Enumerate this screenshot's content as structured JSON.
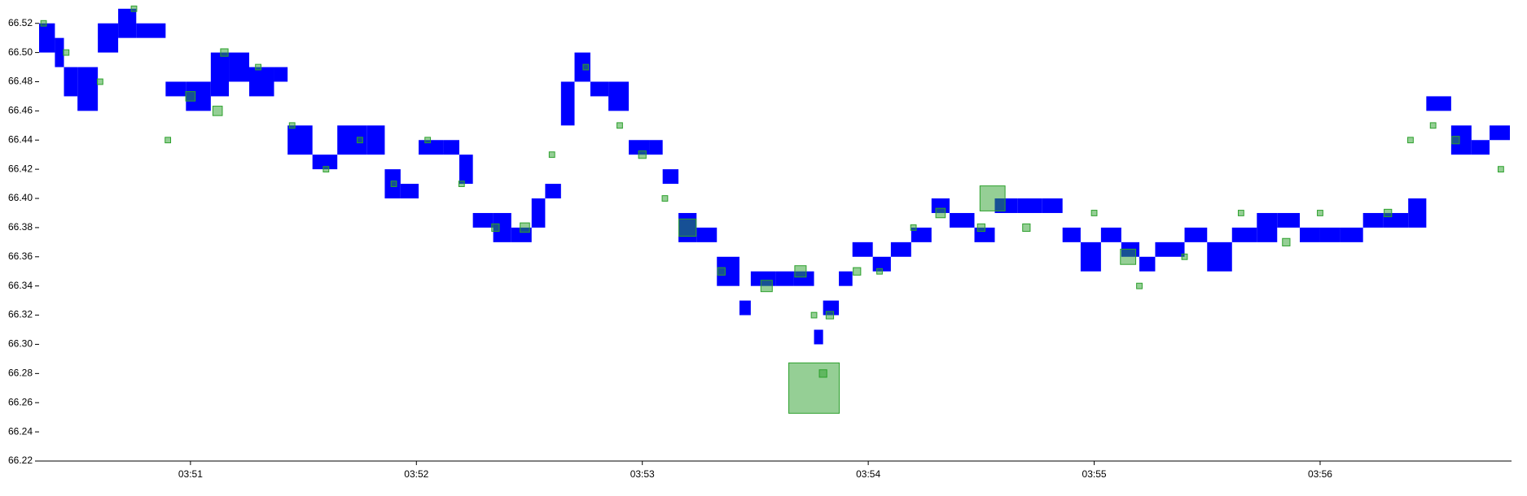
{
  "chart_data": {
    "type": "scatter",
    "xlim": [
      50.33,
      56.84
    ],
    "xticks": [
      {
        "value": 51,
        "label": "03:51"
      },
      {
        "value": 52,
        "label": "03:52"
      },
      {
        "value": 53,
        "label": "03:53"
      },
      {
        "value": 54,
        "label": "03:54"
      },
      {
        "value": 55,
        "label": "03:55"
      },
      {
        "value": 56,
        "label": "03:56"
      }
    ],
    "ylim": [
      66.22,
      66.536
    ],
    "yticks": [
      66.22,
      66.24,
      66.26,
      66.28,
      {
        "value": 66.3,
        "label": "66.30"
      },
      66.32,
      66.34,
      66.36,
      66.38,
      {
        "value": 66.4,
        "label": "66.40"
      },
      66.42,
      66.44,
      66.46,
      66.48,
      {
        "value": 66.5,
        "label": "66.50"
      },
      66.52
    ],
    "band": {
      "color": "#0000ff",
      "x": [
        50.33,
        50.4,
        50.44,
        50.5,
        50.59,
        50.68,
        50.76,
        50.89,
        50.98,
        51.09,
        51.17,
        51.26,
        51.37,
        51.43,
        51.54,
        51.65,
        51.78,
        51.86,
        51.93,
        52.01,
        52.12,
        52.19,
        52.25,
        52.34,
        52.42,
        52.51,
        52.57,
        52.64,
        52.7,
        52.77,
        52.85,
        52.94,
        53.03,
        53.09,
        53.16,
        53.24,
        53.33,
        53.43,
        53.48,
        53.59,
        53.67,
        53.76,
        53.8,
        53.87,
        53.93,
        54.02,
        54.1,
        54.19,
        54.28,
        54.36,
        54.47,
        54.56,
        54.66,
        54.77,
        54.86,
        54.94,
        55.03,
        55.12,
        55.2,
        55.27,
        55.4,
        55.5,
        55.61,
        55.72,
        55.81,
        55.91,
        56.0,
        56.09,
        56.19,
        56.28,
        56.39,
        56.47,
        56.58,
        56.67,
        56.75
      ],
      "low": [
        66.5,
        66.49,
        66.47,
        66.46,
        66.5,
        66.51,
        66.51,
        66.47,
        66.46,
        66.47,
        66.48,
        66.47,
        66.48,
        66.43,
        66.42,
        66.43,
        66.43,
        66.4,
        66.4,
        66.43,
        66.43,
        66.41,
        66.38,
        66.37,
        66.37,
        66.38,
        66.4,
        66.45,
        66.48,
        66.47,
        66.46,
        66.43,
        66.43,
        66.41,
        66.37,
        66.37,
        66.34,
        66.32,
        66.34,
        66.34,
        66.34,
        66.3,
        66.32,
        66.34,
        66.36,
        66.35,
        66.36,
        66.37,
        66.39,
        66.38,
        66.37,
        66.39,
        66.39,
        66.39,
        66.37,
        66.35,
        66.37,
        66.36,
        66.35,
        66.36,
        66.37,
        66.35,
        66.37,
        66.37,
        66.38,
        66.37,
        66.37,
        66.37,
        66.38,
        66.38,
        66.38,
        66.46,
        66.43,
        66.43,
        66.44
      ],
      "high": [
        66.52,
        66.51,
        66.49,
        66.49,
        66.52,
        66.53,
        66.52,
        66.48,
        66.48,
        66.5,
        66.5,
        66.49,
        66.49,
        66.45,
        66.43,
        66.45,
        66.45,
        66.42,
        66.41,
        66.44,
        66.44,
        66.43,
        66.39,
        66.39,
        66.38,
        66.4,
        66.41,
        66.48,
        66.5,
        66.48,
        66.48,
        66.44,
        66.44,
        66.42,
        66.39,
        66.38,
        66.36,
        66.33,
        66.35,
        66.35,
        66.35,
        66.31,
        66.33,
        66.35,
        66.37,
        66.36,
        66.37,
        66.38,
        66.4,
        66.39,
        66.38,
        66.4,
        66.4,
        66.4,
        66.38,
        66.37,
        66.38,
        66.37,
        66.36,
        66.37,
        66.38,
        66.37,
        66.38,
        66.39,
        66.39,
        66.38,
        66.38,
        66.38,
        66.39,
        66.39,
        66.4,
        66.47,
        66.45,
        66.44,
        66.45
      ]
    },
    "trades": {
      "color": "#2ca02c",
      "x": [
        50.35,
        50.45,
        50.6,
        50.75,
        50.9,
        51.0,
        51.12,
        51.15,
        51.3,
        51.45,
        51.6,
        51.75,
        51.9,
        52.05,
        52.2,
        52.35,
        52.48,
        52.6,
        52.75,
        52.9,
        53.0,
        53.1,
        53.2,
        53.35,
        53.55,
        53.7,
        53.76,
        53.76,
        53.8,
        53.83,
        53.95,
        54.05,
        54.2,
        54.32,
        54.5,
        54.55,
        54.7,
        55.0,
        55.15,
        55.2,
        55.4,
        55.65,
        55.85,
        56.0,
        56.3,
        56.4,
        56.5,
        56.6,
        56.8
      ],
      "y": [
        66.52,
        66.5,
        66.48,
        66.53,
        66.44,
        66.47,
        66.46,
        66.5,
        66.49,
        66.45,
        66.42,
        66.44,
        66.41,
        66.44,
        66.41,
        66.38,
        66.38,
        66.43,
        66.49,
        66.45,
        66.43,
        66.4,
        66.38,
        66.35,
        66.34,
        66.35,
        66.27,
        66.32,
        66.28,
        66.32,
        66.35,
        66.35,
        66.38,
        66.39,
        66.38,
        66.4,
        66.38,
        66.39,
        66.36,
        66.34,
        66.36,
        66.39,
        66.37,
        66.39,
        66.39,
        66.44,
        66.45,
        66.44,
        66.42
      ],
      "size": [
        2,
        2,
        2,
        2,
        2,
        4,
        4,
        3,
        2,
        2,
        2,
        2,
        2,
        2,
        2,
        3,
        4,
        2,
        2,
        2,
        3,
        2,
        8,
        3,
        5,
        5,
        25,
        2,
        3,
        3,
        3,
        2,
        2,
        4,
        3,
        12,
        3,
        2,
        7,
        2,
        2,
        2,
        3,
        2,
        3,
        2,
        2,
        3,
        2
      ]
    }
  }
}
